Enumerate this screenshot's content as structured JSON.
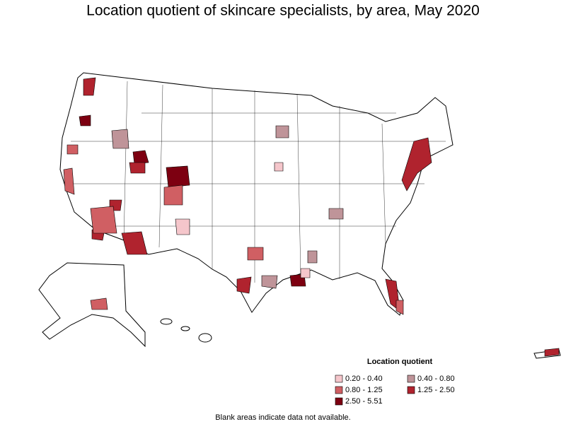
{
  "title": "Location quotient of skincare specialists, by area, May 2020",
  "legend": {
    "title": "Location quotient",
    "items": [
      {
        "label": "0.20 - 0.40",
        "color": "#f5c6cb"
      },
      {
        "label": "0.40 - 0.80",
        "color": "#bf9499"
      },
      {
        "label": "0.80 - 1.25",
        "color": "#d05f63"
      },
      {
        "label": "1.25 - 2.50",
        "color": "#b0232e"
      },
      {
        "label": "2.50 - 5.51",
        "color": "#7d0011"
      }
    ]
  },
  "note": "Blank areas indicate data not available."
}
